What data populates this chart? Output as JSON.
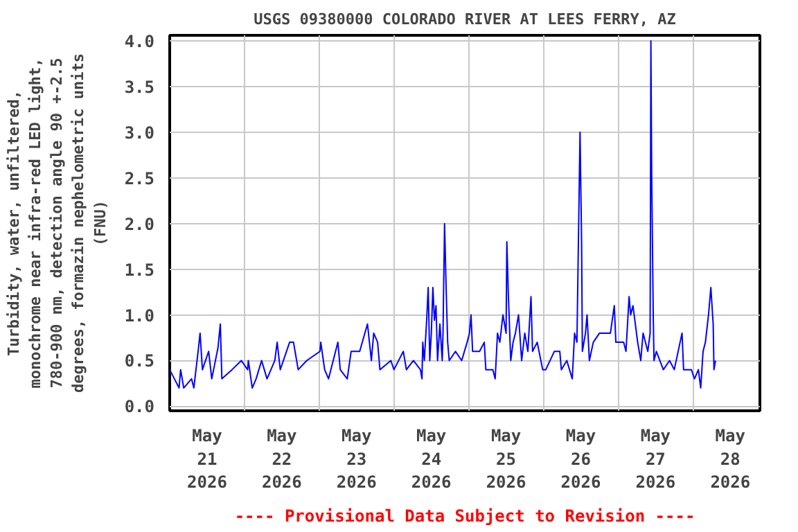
{
  "chart_data": {
    "type": "line",
    "title": "USGS 09380000 COLORADO RIVER AT LEES FERRY, AZ",
    "ylabel": "Turbidity, water, unfiltered,\nmonochrome near infra-red LED light,\n780-900 nm, detection angle 90 +-2.5\ndegrees, formazin nephelometric units\n(FNU)",
    "annotations": [
      "---- Provisional Data Subject to Revision ----"
    ],
    "xlim": [
      "2026-05-21T00:00",
      "2026-05-28T21:30"
    ],
    "xticks": [
      {
        "value": "2026-05-21T12:00",
        "label": "May\n21\n2026"
      },
      {
        "value": "2026-05-22T00:00",
        "label": null
      },
      {
        "value": "2026-05-22T12:00",
        "label": "May\n22\n2026"
      },
      {
        "value": "2026-05-23T00:00",
        "label": null
      },
      {
        "value": "2026-05-23T12:00",
        "label": "May\n23\n2026"
      },
      {
        "value": "2026-05-24T00:00",
        "label": null
      },
      {
        "value": "2026-05-24T12:00",
        "label": "May\n24\n2026"
      },
      {
        "value": "2026-05-25T00:00",
        "label": null
      },
      {
        "value": "2026-05-25T12:00",
        "label": "May\n25\n2026"
      },
      {
        "value": "2026-05-26T00:00",
        "label": null
      },
      {
        "value": "2026-05-26T12:00",
        "label": "May\n26\n2026"
      },
      {
        "value": "2026-05-27T00:00",
        "label": null
      },
      {
        "value": "2026-05-27T12:00",
        "label": "May\n27\n2026"
      },
      {
        "value": "2026-05-28T00:00",
        "label": null
      },
      {
        "value": "2026-05-28T12:00",
        "label": "May\n28\n2026"
      }
    ],
    "ylim": [
      -0.05,
      4.06
    ],
    "yticks": [
      {
        "value": 0,
        "label": "0.0"
      },
      {
        "value": 0.5,
        "label": "0.5"
      },
      {
        "value": 1,
        "label": "1.0"
      },
      {
        "value": 1.5,
        "label": "1.5"
      },
      {
        "value": 2,
        "label": "2.0"
      },
      {
        "value": 2.5,
        "label": "2.5"
      },
      {
        "value": 3,
        "label": "3.0"
      },
      {
        "value": 3.5,
        "label": "3.5"
      },
      {
        "value": 4,
        "label": "4.0"
      }
    ],
    "grid": true,
    "line_style": "solid",
    "series": [
      {
        "color": "#0000ff",
        "x": [
          "2026-05-21T00:00",
          "2026-05-21T01:30",
          "2026-05-21T03:00",
          "2026-05-21T03:30",
          "2026-05-21T04:30",
          "2026-05-21T07:00",
          "2026-05-21T07:45",
          "2026-05-21T09:15",
          "2026-05-21T09:45",
          "2026-05-21T10:30",
          "2026-05-21T12:30",
          "2026-05-21T13:30",
          "2026-05-21T15:30",
          "2026-05-21T16:15",
          "2026-05-21T16:45",
          "2026-05-21T20:00",
          "2026-05-21T23:00",
          "2026-05-22T01:00",
          "2026-05-22T01:15",
          "2026-05-22T02:30",
          "2026-05-22T03:45",
          "2026-05-22T05:30",
          "2026-05-22T07:15",
          "2026-05-22T09:45",
          "2026-05-22T10:30",
          "2026-05-22T11:30",
          "2026-05-22T14:30",
          "2026-05-22T15:45",
          "2026-05-22T17:15",
          "2026-05-22T20:00",
          "2026-05-23T00:15",
          "2026-05-23T00:30",
          "2026-05-23T01:45",
          "2026-05-23T03:00",
          "2026-05-23T06:00",
          "2026-05-23T06:45",
          "2026-05-23T09:00",
          "2026-05-23T10:15",
          "2026-05-23T13:00",
          "2026-05-23T15:30",
          "2026-05-23T16:45",
          "2026-05-23T17:30",
          "2026-05-23T18:45",
          "2026-05-23T19:30",
          "2026-05-23T23:00",
          "2026-05-24T00:00",
          "2026-05-24T03:00",
          "2026-05-24T04:00",
          "2026-05-24T06:15",
          "2026-05-24T08:30",
          "2026-05-24T09:00",
          "2026-05-24T09:15",
          "2026-05-24T09:45",
          "2026-05-24T10:30",
          "2026-05-24T11:00",
          "2026-05-24T11:30",
          "2026-05-24T12:00",
          "2026-05-24T12:30",
          "2026-05-24T13:00",
          "2026-05-24T13:30",
          "2026-05-24T14:00",
          "2026-05-24T14:45",
          "2026-05-24T15:30",
          "2026-05-24T15:45",
          "2026-05-24T16:15",
          "2026-05-24T16:45",
          "2026-05-24T17:15",
          "2026-05-24T17:45",
          "2026-05-24T19:45",
          "2026-05-24T21:45",
          "2026-05-24T23:30",
          "2026-05-25T00:15",
          "2026-05-25T00:45",
          "2026-05-25T01:15",
          "2026-05-25T03:30",
          "2026-05-25T05:00",
          "2026-05-25T05:30",
          "2026-05-25T07:45",
          "2026-05-25T08:30",
          "2026-05-25T09:15",
          "2026-05-25T10:00",
          "2026-05-25T11:00",
          "2026-05-25T12:00",
          "2026-05-25T12:15",
          "2026-05-25T12:45",
          "2026-05-25T13:30",
          "2026-05-25T14:15",
          "2026-05-25T15:00",
          "2026-05-25T16:00",
          "2026-05-25T17:00",
          "2026-05-25T18:00",
          "2026-05-25T19:00",
          "2026-05-25T20:00",
          "2026-05-25T20:30",
          "2026-05-25T22:00",
          "2026-05-25T23:45",
          "2026-05-26T00:45",
          "2026-05-26T03:30",
          "2026-05-26T05:15",
          "2026-05-26T05:45",
          "2026-05-26T07:30",
          "2026-05-26T09:15",
          "2026-05-26T10:00",
          "2026-05-26T10:45",
          "2026-05-26T11:45",
          "2026-05-26T12:15",
          "2026-05-26T12:30",
          "2026-05-26T13:30",
          "2026-05-26T14:00",
          "2026-05-26T14:45",
          "2026-05-26T16:00",
          "2026-05-26T18:00",
          "2026-05-26T21:30",
          "2026-05-26T22:45",
          "2026-05-26T23:15",
          "2026-05-27T01:45",
          "2026-05-27T02:30",
          "2026-05-27T03:30",
          "2026-05-27T04:00",
          "2026-05-27T04:45",
          "2026-05-27T05:30",
          "2026-05-27T06:15",
          "2026-05-27T07:15",
          "2026-05-27T08:00",
          "2026-05-27T09:30",
          "2026-05-27T10:15",
          "2026-05-27T10:30",
          "2026-05-27T10:45",
          "2026-05-27T11:15",
          "2026-05-27T11:30",
          "2026-05-27T12:15",
          "2026-05-27T14:30",
          "2026-05-27T16:30",
          "2026-05-27T18:00",
          "2026-05-27T20:30",
          "2026-05-27T21:00",
          "2026-05-27T23:30",
          "2026-05-28T00:30",
          "2026-05-28T01:45",
          "2026-05-28T02:30",
          "2026-05-28T03:15",
          "2026-05-28T04:00",
          "2026-05-28T05:00",
          "2026-05-28T05:45",
          "2026-05-28T06:30",
          "2026-05-28T06:45",
          "2026-05-28T07:15"
        ],
        "values": [
          0.4,
          0.3,
          0.2,
          0.4,
          0.2,
          0.3,
          0.2,
          0.64,
          0.8,
          0.4,
          0.6,
          0.3,
          0.64,
          0.9,
          0.3,
          0.4,
          0.5,
          0.4,
          0.5,
          0.2,
          0.3,
          0.5,
          0.3,
          0.5,
          0.7,
          0.4,
          0.7,
          0.7,
          0.4,
          0.5,
          0.6,
          0.7,
          0.4,
          0.3,
          0.7,
          0.4,
          0.3,
          0.6,
          0.6,
          0.9,
          0.5,
          0.8,
          0.7,
          0.4,
          0.5,
          0.4,
          0.6,
          0.4,
          0.5,
          0.4,
          0.3,
          0.7,
          0.5,
          0.94,
          1.3,
          0.5,
          0.8,
          1.3,
          0.94,
          1.1,
          0.5,
          0.9,
          0.5,
          0.8,
          2.0,
          1.3,
          0.7,
          0.5,
          0.6,
          0.5,
          0.7,
          0.8,
          1.0,
          0.6,
          0.6,
          0.7,
          0.4,
          0.4,
          0.3,
          0.8,
          0.7,
          1.0,
          0.8,
          1.8,
          1.2,
          0.5,
          0.7,
          0.8,
          1.0,
          0.5,
          0.8,
          0.6,
          1.2,
          0.6,
          0.7,
          0.4,
          0.4,
          0.6,
          0.6,
          0.4,
          0.5,
          0.3,
          0.8,
          0.7,
          3.0,
          1.8,
          0.6,
          0.8,
          1.0,
          0.5,
          0.7,
          0.8,
          0.8,
          1.1,
          0.7,
          0.7,
          0.6,
          1.2,
          1.0,
          1.1,
          0.9,
          0.7,
          0.5,
          0.8,
          0.6,
          0.8,
          4.0,
          2.55,
          1.0,
          0.5,
          0.6,
          0.4,
          0.5,
          0.4,
          0.8,
          0.4,
          0.4,
          0.3,
          0.4,
          0.2,
          0.6,
          0.7,
          1.0,
          1.3,
          0.9,
          0.4,
          0.5
        ]
      }
    ]
  }
}
